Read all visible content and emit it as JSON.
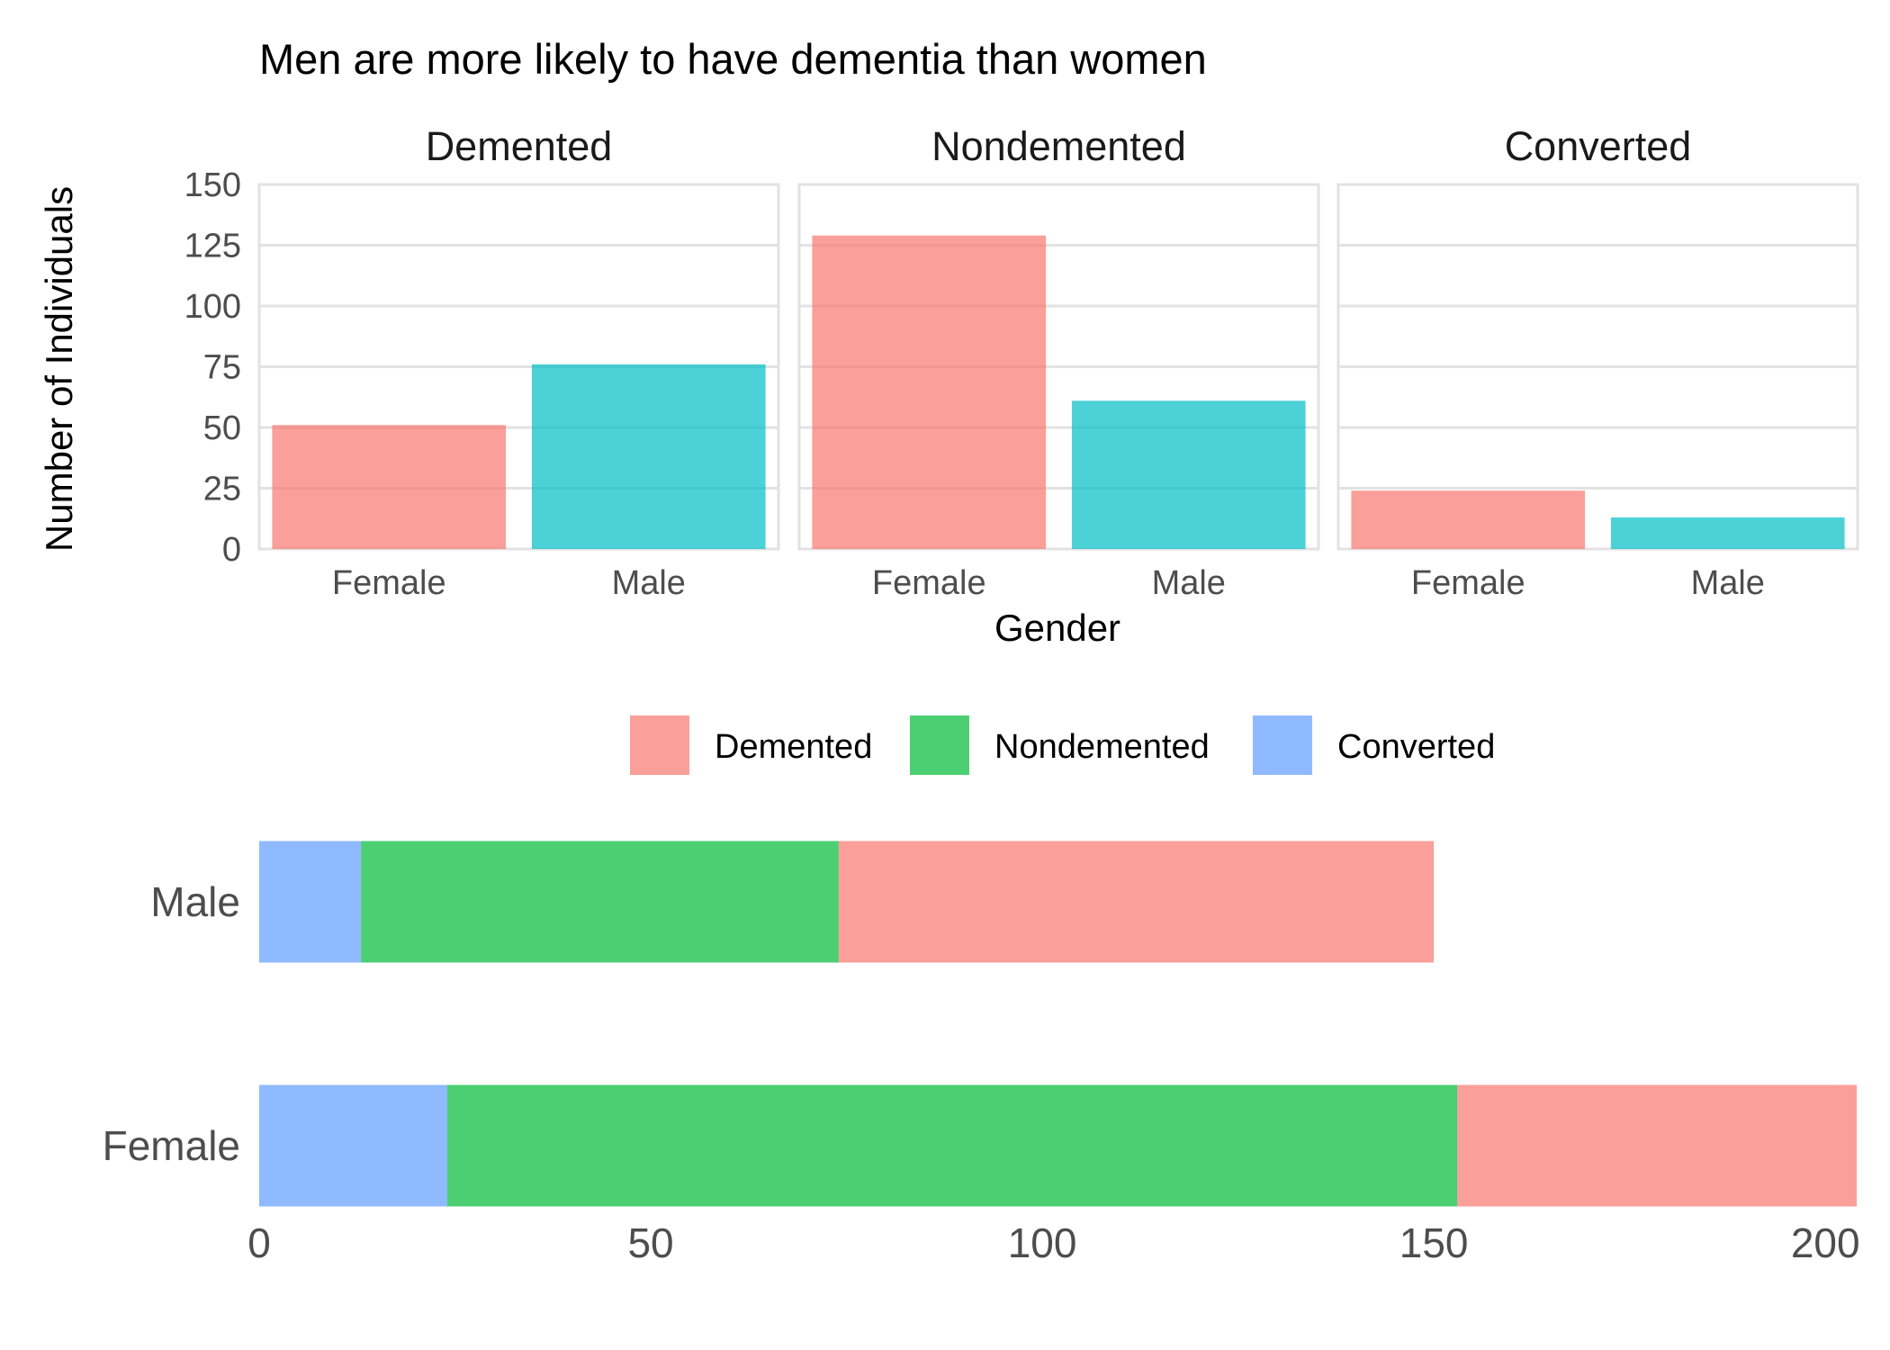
{
  "chart_data": [
    {
      "type": "bar",
      "title": "Men are more likely to have dementia than women",
      "xlabel": "Gender",
      "ylabel": "Number of Individuals",
      "ylim": [
        0,
        150
      ],
      "yticks": [
        0,
        25,
        50,
        75,
        100,
        125,
        150
      ],
      "grid": true,
      "categories": [
        "Female",
        "Male"
      ],
      "facets": [
        {
          "name": "Demented",
          "values": [
            51,
            76
          ]
        },
        {
          "name": "Nondemented",
          "values": [
            129,
            61
          ]
        },
        {
          "name": "Converted",
          "values": [
            24,
            13
          ]
        }
      ],
      "colors": {
        "Female": "#F8766D",
        "Male": "#00BFC4"
      }
    },
    {
      "type": "bar",
      "orientation": "horizontal",
      "stacked": true,
      "categories": [
        "Male",
        "Female"
      ],
      "series": [
        {
          "name": "Converted",
          "values": [
            13,
            24
          ]
        },
        {
          "name": "Nondemented",
          "values": [
            61,
            129
          ]
        },
        {
          "name": "Demented",
          "values": [
            76,
            51
          ]
        }
      ],
      "xlim": [
        0,
        204
      ],
      "xticks": [
        0,
        50,
        100,
        150,
        200
      ],
      "legend": {
        "position": "top",
        "order": [
          "Demented",
          "Nondemented",
          "Converted"
        ]
      },
      "colors": {
        "Demented": "#F8766D",
        "Nondemented": "#00BA38",
        "Converted": "#619CFF"
      }
    }
  ]
}
